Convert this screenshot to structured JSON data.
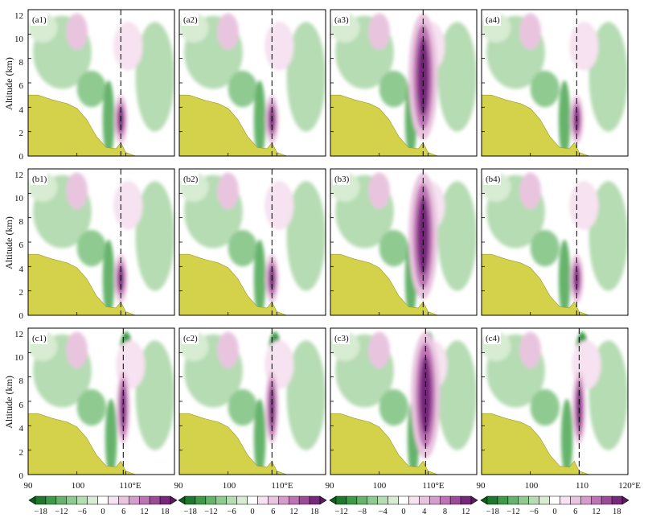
{
  "figure": {
    "ylabel": "Altitude (km)",
    "y_ticks": [
      "0",
      "2",
      "4",
      "6",
      "8",
      "10",
      "12"
    ],
    "x_ticks": [
      {
        "label": "90"
      },
      {
        "label": "100"
      },
      {
        "label": "110°E"
      },
      {
        "label": "90"
      },
      {
        "label": "100"
      },
      {
        "label": "110°E"
      },
      {
        "label": "90"
      },
      {
        "label": "100"
      },
      {
        "label": "110°E"
      },
      {
        "label": "90"
      },
      {
        "label": "100"
      },
      {
        "label": "110"
      },
      {
        "label": "120°E"
      }
    ]
  },
  "chart_data": {
    "type": "heatmap",
    "layout": "3 rows x 4 columns of altitude-longitude cross sections",
    "panels": [
      {
        "label": "(a1)",
        "marker_lon": 109.0
      },
      {
        "label": "(a2)",
        "marker_lon": 109.0
      },
      {
        "label": "(a3)",
        "marker_lon": 109.0
      },
      {
        "label": "(a4)",
        "marker_lon": 109.5
      },
      {
        "label": "(b1)",
        "marker_lon": 109.0
      },
      {
        "label": "(b2)",
        "marker_lon": 109.0
      },
      {
        "label": "(b3)",
        "marker_lon": 109.0
      },
      {
        "label": "(b4)",
        "marker_lon": 109.5
      },
      {
        "label": "(c1)",
        "marker_lon": 109.5
      },
      {
        "label": "(c2)",
        "marker_lon": 109.0
      },
      {
        "label": "(c3)",
        "marker_lon": 109.5
      },
      {
        "label": "(c4)",
        "marker_lon": 110.0
      }
    ],
    "x_range": [
      90,
      120
    ],
    "y_range": [
      0,
      12
    ],
    "terrain": [
      [
        90,
        5.0
      ],
      [
        92,
        5.0
      ],
      [
        95,
        4.6
      ],
      [
        98,
        4.3
      ],
      [
        100,
        3.9
      ],
      [
        102,
        3.0
      ],
      [
        104,
        1.6
      ],
      [
        106,
        0.7
      ],
      [
        108,
        0.6
      ],
      [
        109,
        1.1
      ],
      [
        110,
        0.3
      ],
      [
        112,
        0.0
      ],
      [
        120,
        0.0
      ]
    ],
    "colors": {
      "terrain": "#d4d24a",
      "neg": [
        "#1d7a2c",
        "#3d9a46",
        "#66b46c",
        "#8fca91",
        "#b6dcb3",
        "#d7ecd2"
      ],
      "pos": [
        "#f6e2f0",
        "#e9c4df",
        "#d59dcb",
        "#bd73b4",
        "#9c4b98",
        "#76287a"
      ]
    },
    "colorbars": [
      {
        "ticks": [
          "−18",
          "−12",
          "−6",
          "0",
          "6",
          "12",
          "18"
        ]
      },
      {
        "ticks": [
          "−18",
          "−12",
          "−6",
          "0",
          "6",
          "12",
          "18"
        ]
      },
      {
        "ticks": [
          "−12",
          "−8",
          "−4",
          "0",
          "4",
          "8",
          "12"
        ]
      },
      {
        "ticks": [
          "−18",
          "−12",
          "−6",
          "0",
          "6",
          "12",
          "18"
        ]
      }
    ]
  }
}
